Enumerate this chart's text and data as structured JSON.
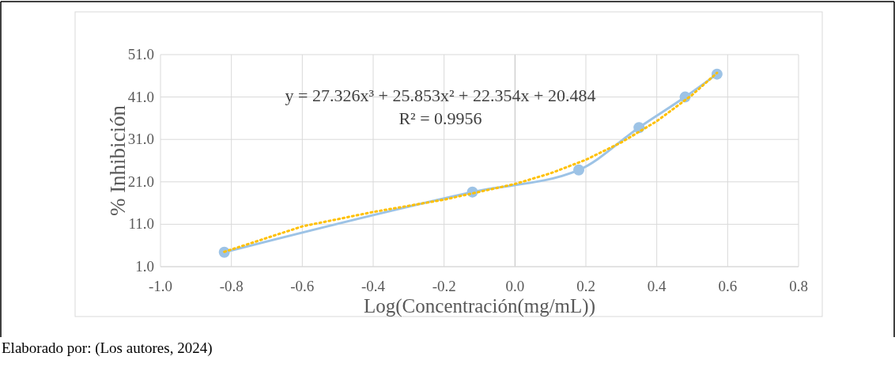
{
  "chart_data": {
    "type": "line",
    "xlabel": "Log(Concentración(mg/mL))",
    "ylabel": "% Inhibición",
    "series": [
      {
        "color": "#9dc3e6",
        "marker": "circle",
        "line_style": "solid",
        "x": [
          -0.82,
          -0.12,
          0.18,
          0.35,
          0.48,
          0.57
        ],
        "values": [
          4.4,
          18.6,
          23.8,
          33.8,
          41.0,
          46.4
        ]
      },
      {
        "color": "#ffc000",
        "marker": "none",
        "line_style": "dotted",
        "x": [
          -0.82,
          -0.6,
          -0.4,
          -0.2,
          0,
          0.1,
          0.2,
          0.3,
          0.4,
          0.5,
          0.57
        ],
        "values": [
          4.5,
          10.5,
          13.9,
          16.8,
          20.5,
          23.0,
          26.2,
          30.3,
          35.3,
          41.5,
          46.7
        ]
      }
    ],
    "xlim": [
      -1,
      0.8
    ],
    "xticks": [
      {
        "value": -1,
        "label": "-1.0"
      },
      {
        "value": -0.8,
        "label": "-0.8"
      },
      {
        "value": -0.6,
        "label": "-0.6"
      },
      {
        "value": -0.4,
        "label": "-0.4"
      },
      {
        "value": -0.2,
        "label": "-0.2"
      },
      {
        "value": 0,
        "label": "0.0"
      },
      {
        "value": 0.2,
        "label": "0.2"
      },
      {
        "value": 0.4,
        "label": "0.4"
      },
      {
        "value": 0.6,
        "label": "0.6"
      },
      {
        "value": 0.8,
        "label": "0.8"
      }
    ],
    "ylim": [
      1,
      51
    ],
    "yticks": [
      {
        "value": 1,
        "label": "1.0"
      },
      {
        "value": 11,
        "label": "11.0"
      },
      {
        "value": 21,
        "label": "21.0"
      },
      {
        "value": 31,
        "label": "31.0"
      },
      {
        "value": 41,
        "label": "41.0"
      },
      {
        "value": 51,
        "label": "51.0"
      }
    ],
    "grid": true,
    "annotations": [
      "y = 27.326x³ + 25.853x² + 22.354x + 20.484",
      "R² = 0.9956",
      "Elaborado por: (Los autores, 2024)"
    ]
  }
}
